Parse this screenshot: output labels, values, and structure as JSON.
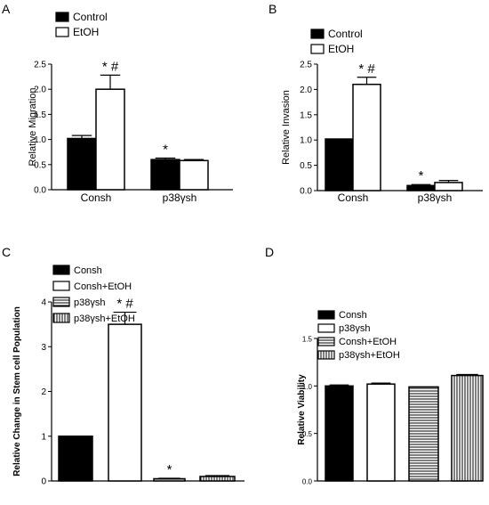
{
  "panels": {
    "a": {
      "label": "A"
    },
    "b": {
      "label": "B"
    },
    "c": {
      "label": "C"
    },
    "d": {
      "label": "D"
    }
  },
  "chart_data": [
    {
      "panel": "A",
      "type": "bar",
      "ylabel": "Relative Migration",
      "categories": [
        "Consh",
        "p38γsh"
      ],
      "ylim": [
        0,
        2.5
      ],
      "yticks": [
        "0.0",
        "0.5",
        "1.0",
        "1.5",
        "2.0",
        "2.5"
      ],
      "series": [
        {
          "name": "Control",
          "values": [
            1.02,
            0.6
          ],
          "errors": [
            0.06,
            0.03
          ],
          "fill": "#000000"
        },
        {
          "name": "EtOH",
          "values": [
            2.0,
            0.58
          ],
          "errors": [
            0.28,
            0.02
          ],
          "fill": "#ffffff"
        }
      ],
      "annotations": [
        {
          "category": 0,
          "series": 1,
          "text": "* #"
        },
        {
          "category": 1,
          "series": 0,
          "text": "*"
        }
      ],
      "legend": "top-left"
    },
    {
      "panel": "B",
      "type": "bar",
      "ylabel": "Relative Invasion",
      "categories": [
        "Consh",
        "p38γsh"
      ],
      "ylim": [
        0,
        2.5
      ],
      "yticks": [
        "0.0",
        "0.5",
        "1.0",
        "1.5",
        "2.0",
        "2.5"
      ],
      "series": [
        {
          "name": "Control",
          "values": [
            1.02,
            0.1
          ],
          "errors": [
            0.0,
            0.02
          ],
          "fill": "#000000"
        },
        {
          "name": "EtOH",
          "values": [
            2.1,
            0.16
          ],
          "errors": [
            0.14,
            0.04
          ],
          "fill": "#ffffff"
        }
      ],
      "annotations": [
        {
          "category": 0,
          "series": 1,
          "text": "* #"
        },
        {
          "category": 1,
          "series": 0,
          "text": "*"
        }
      ],
      "legend": "top-left"
    },
    {
      "panel": "C",
      "type": "bar",
      "ylabel": "Relative Change in Stem cell Population",
      "categories": [
        "Consh",
        "Consh+EtOH",
        "p38γsh",
        "p38γsh+EtOH"
      ],
      "ylim": [
        0,
        4
      ],
      "yticks": [
        "0",
        "1",
        "2",
        "3",
        "4"
      ],
      "values": [
        1.0,
        3.5,
        0.05,
        0.1
      ],
      "errors": [
        0.0,
        0.27,
        0.01,
        0.02
      ],
      "legend_labels": [
        "Consh",
        "Consh+EtOH",
        "p38γsh",
        "p38γsh+EtOH"
      ],
      "fills": [
        "solid",
        "white",
        "hlines",
        "vlines"
      ],
      "annotations": [
        {
          "index": 1,
          "text": "* #"
        },
        {
          "index": 2,
          "text": "*"
        }
      ],
      "legend": "top-left"
    },
    {
      "panel": "D",
      "type": "bar",
      "ylabel": "Relative Viability",
      "categories": [
        "Consh",
        "p38γsh",
        "Consh+EtOH",
        "p38γsh+EtOH"
      ],
      "ylim": [
        0,
        1.5
      ],
      "yticks": [
        "0.0",
        "0.5",
        "1.0",
        "1.5"
      ],
      "values": [
        1.0,
        1.02,
        0.99,
        1.11
      ],
      "errors": [
        0.01,
        0.01,
        0.0,
        0.01
      ],
      "legend_labels": [
        "Consh",
        "p38γsh",
        "Consh+EtOH",
        "p38γsh+EtOH"
      ],
      "fills": [
        "solid",
        "white",
        "hlines",
        "vlines"
      ],
      "legend": "top-left"
    }
  ]
}
